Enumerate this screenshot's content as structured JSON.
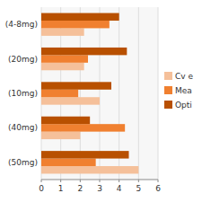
{
  "chart_data": {
    "type": "bar",
    "orientation": "horizontal",
    "categories": [
      "(4-8mg)",
      "(20mg)",
      "(10mg)",
      "(40mg)",
      "(50mg)"
    ],
    "series": [
      {
        "name": "Cv e",
        "color": "#f5c09a",
        "values": [
          2.2,
          2.2,
          3.0,
          2.0,
          5.0
        ]
      },
      {
        "name": "Mea",
        "color": "#f08030",
        "values": [
          3.5,
          2.4,
          1.9,
          4.3,
          2.8
        ]
      },
      {
        "name": "Opti",
        "color": "#b85000",
        "values": [
          4.0,
          4.4,
          3.6,
          2.5,
          4.5
        ]
      }
    ],
    "xlim": [
      0,
      6
    ],
    "xticks": [
      0,
      1,
      2,
      3,
      4,
      5,
      6
    ],
    "grid": true,
    "legend": "right"
  }
}
